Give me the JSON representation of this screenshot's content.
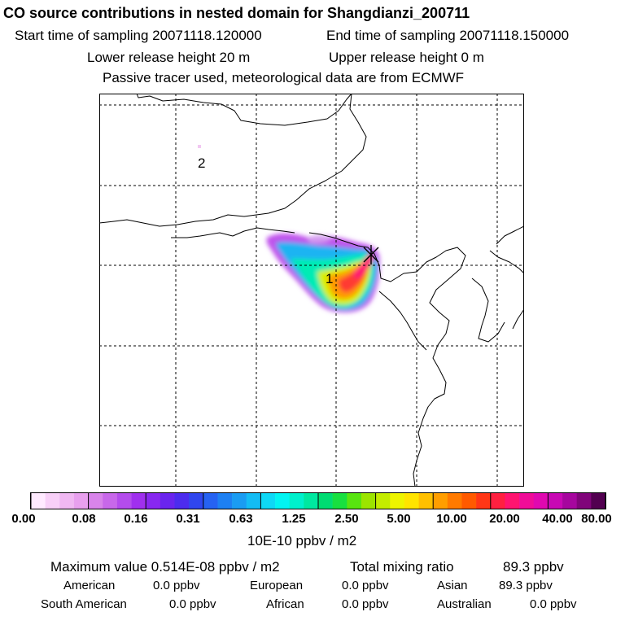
{
  "header": {
    "title": "CO  source contributions in nested domain for Shangdianzi_200711",
    "start_label": "Start time of sampling 20071118.120000",
    "end_label": "End time of sampling 20071118.150000",
    "lower_label": "Lower release height   20 m",
    "upper_label": "Upper release height    0 m",
    "tracer_note": "Passive tracer used, meteorological data are from ECMWF"
  },
  "map": {
    "markers": [
      {
        "label": "1"
      },
      {
        "label": "2"
      }
    ],
    "colors": {
      "border": "#000000",
      "grid": "#000000",
      "station": "#000000"
    }
  },
  "colorbar": {
    "colors": [
      "#ffeaff",
      "#f8d0f8",
      "#f0b8f2",
      "#e8a0ee",
      "#d884ea",
      "#c868ea",
      "#b44cec",
      "#a030ee",
      "#8828f0",
      "#6a24ee",
      "#4c2cee",
      "#3046ee",
      "#2662f2",
      "#1e80f2",
      "#1a9cf2",
      "#14bcf4",
      "#0ed8f6",
      "#02f4f2",
      "#00f0cc",
      "#00e8a0",
      "#00dc72",
      "#18e040",
      "#58e410",
      "#9ce400",
      "#c4ec00",
      "#eef400",
      "#ffe400",
      "#ffc000",
      "#ff9e00",
      "#ff7a00",
      "#ff5a00",
      "#ff3616",
      "#ff2040",
      "#ff1470",
      "#f00c98",
      "#e008b0",
      "#c808b4",
      "#a6069e",
      "#80047a",
      "#520050"
    ],
    "tick_labels": [
      "0.00",
      "0.08",
      "0.16",
      "0.31",
      "0.63",
      "1.25",
      "2.50",
      "5.00",
      "10.00",
      "20.00",
      "40.00",
      "80.00"
    ],
    "unit": "10E-10 ppbv / m2"
  },
  "stats": {
    "maximum": "Maximum value  0.514E-08 ppbv / m2",
    "total": "Total mixing ratio",
    "total_value": "89.3 ppbv",
    "american": "American",
    "american_value": "0.0 ppbv",
    "european": "European",
    "european_value": "0.0 ppbv",
    "asian": "Asian",
    "asian_value": "89.3 ppbv",
    "south_american": "South American",
    "south_american_value": "0.0 ppbv",
    "african": "African",
    "african_value": "0.0 ppbv",
    "australian": "Australian",
    "australian_value": "0.0 ppbv"
  }
}
